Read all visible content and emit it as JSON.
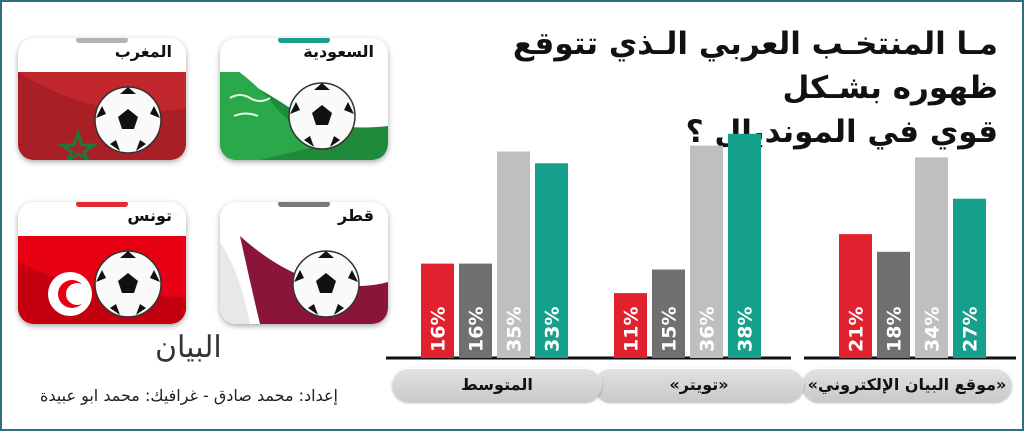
{
  "title_line1": "مـا المنتخـب العربي الـذي تتوقع ظهوره بشـكل",
  "title_line2": "قوي في المونديال ؟",
  "teams": [
    {
      "name": "السعودية",
      "tab_color": "#1aa08a"
    },
    {
      "name": "المغرب",
      "tab_color": "#b3b3b3"
    },
    {
      "name": "قطر",
      "tab_color": "#7a7a7a"
    },
    {
      "name": "تونس",
      "tab_color": "#e02b35"
    }
  ],
  "logo": "البيان",
  "credit": "إعداد: محمد صادق - غرافيك: محمد ابو عبيدة",
  "colors": {
    "red": "#e1222e",
    "dark_gray": "#707070",
    "light_gray": "#bfbfbf",
    "teal": "#14a08a"
  },
  "chart_data": {
    "type": "bar",
    "title": "مـا المنتخـب العربي الـذي تتوقع ظهوره بشـكل قوي في المونديال ؟",
    "ylim": [
      0,
      40
    ],
    "grid": false,
    "series_order": [
      "تونس",
      "قطر",
      "المغرب",
      "السعودية"
    ],
    "groups": [
      {
        "label": "«موقع البيان الإلكتروني»",
        "values": [
          21,
          18,
          34,
          27
        ],
        "labels": [
          "21%",
          "18%",
          "34%",
          "27%"
        ]
      },
      {
        "label": "«تويتر»",
        "values": [
          11,
          15,
          36,
          38
        ],
        "labels": [
          "11%",
          "15%",
          "36%",
          "38%"
        ]
      },
      {
        "label": "المتوسط",
        "values": [
          16,
          16,
          35,
          33
        ],
        "labels": [
          "16%",
          "16%",
          "35%",
          "33%"
        ]
      }
    ]
  }
}
